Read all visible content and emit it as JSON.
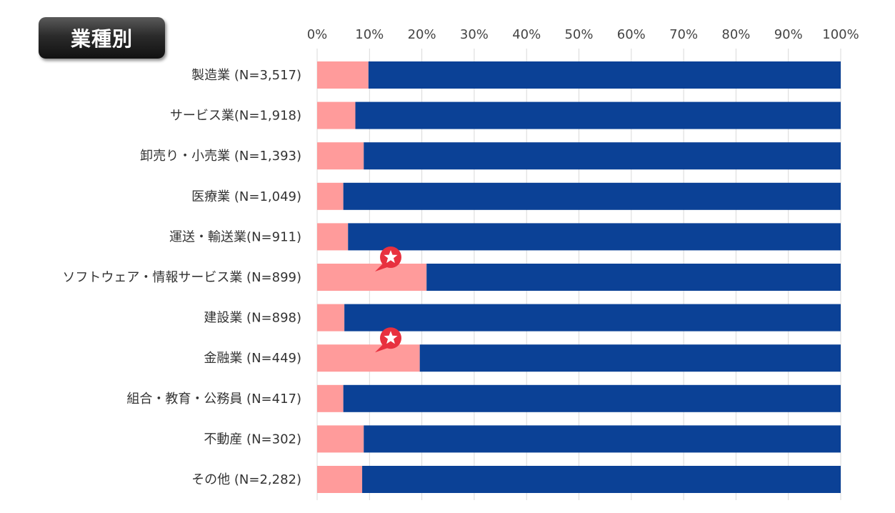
{
  "title": "業種別",
  "colors": {
    "series_a": "#FF9B9B",
    "series_b": "#0B4196",
    "grid": "#D9D9D9",
    "star_bg": "#E8313F"
  },
  "icons": {
    "marker": "star-icon"
  },
  "chart_data": {
    "type": "bar",
    "orientation": "horizontal",
    "stacked": true,
    "xlim": [
      0,
      100
    ],
    "x_ticks": [
      "0%",
      "10%",
      "20%",
      "30%",
      "40%",
      "50%",
      "60%",
      "70%",
      "80%",
      "90%",
      "100%"
    ],
    "x_tick_position": "top",
    "grid": true,
    "categories": [
      "製造業 (N=3,517)",
      "サービス業(N=1,918)",
      "卸売り・小売業 (N=1,393)",
      "医療業 (N=1,049)",
      "運送・輸送業(N=911)",
      "ソフトウェア・情報サービス業 (N=899)",
      "建設業 (N=898)",
      "金融業 (N=449)",
      "組合・教育・公務員 (N=417)",
      "不動産 (N=302)",
      "その他 (N=2,282)"
    ],
    "series": [
      {
        "values": [
          9.8,
          7.3,
          8.9,
          5.0,
          5.9,
          20.9,
          5.2,
          19.6,
          5.0,
          8.9,
          8.6
        ]
      },
      {
        "values": [
          90.2,
          92.7,
          91.1,
          95.0,
          94.1,
          79.1,
          94.8,
          80.4,
          95.0,
          91.1,
          91.4
        ]
      }
    ],
    "highlighted_categories": [
      5,
      7
    ]
  }
}
